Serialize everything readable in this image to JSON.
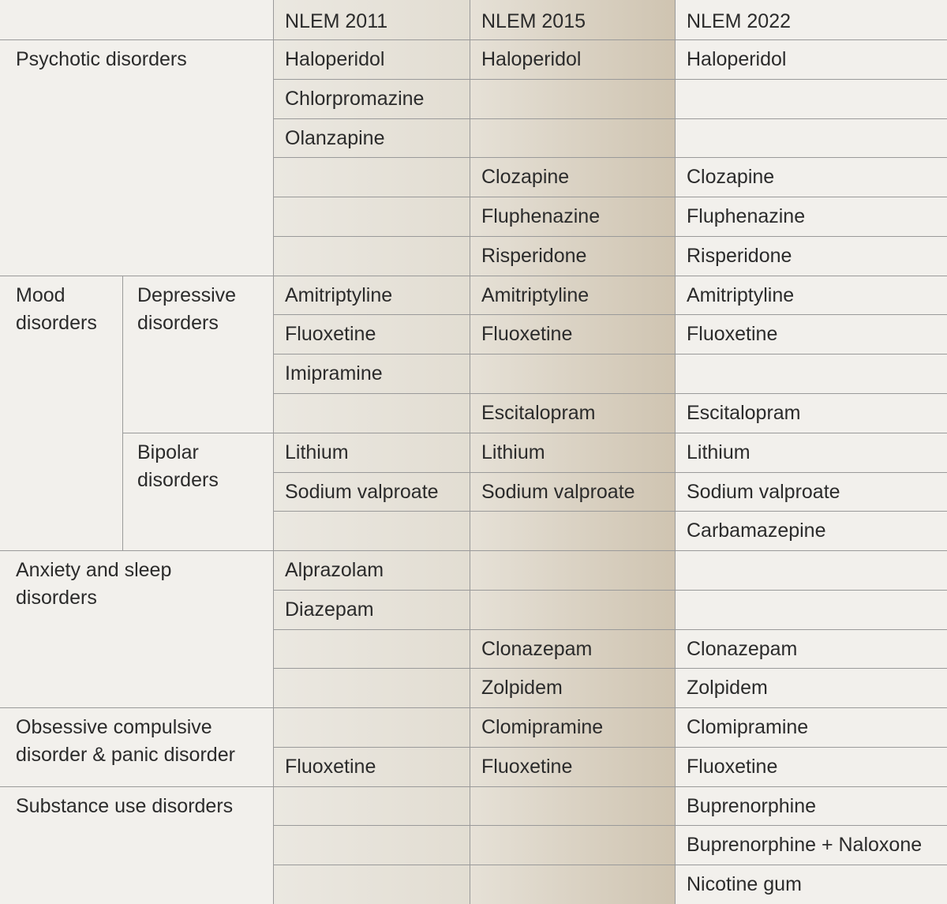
{
  "header": {
    "columns": [
      "NLEM 2011",
      "NLEM 2015",
      "NLEM 2022"
    ]
  },
  "groups": [
    {
      "label": "Psychotic disorders",
      "rows": [
        [
          "Haloperidol",
          "Haloperidol",
          "Haloperidol"
        ],
        [
          "Chlorpromazine",
          null,
          null
        ],
        [
          "Olanzapine",
          null,
          null
        ],
        [
          null,
          "Clozapine",
          "Clozapine"
        ],
        [
          null,
          "Fluphenazine",
          "Fluphenazine"
        ],
        [
          null,
          "Risperidone",
          "Risperidone"
        ]
      ]
    },
    {
      "label": "Mood disorders",
      "subgroups": [
        {
          "label": "Depressive disorders",
          "rows": [
            [
              "Amitriptyline",
              "Amitriptyline",
              "Amitriptyline"
            ],
            [
              "Fluoxetine",
              "Fluoxetine",
              "Fluoxetine"
            ],
            [
              "Imipramine",
              null,
              null
            ],
            [
              null,
              "Escitalopram",
              "Escitalopram"
            ]
          ]
        },
        {
          "label": "Bipolar disorders",
          "rows": [
            [
              "Lithium",
              "Lithium",
              "Lithium"
            ],
            [
              "Sodium valproate",
              "Sodium valproate",
              "Sodium valproate"
            ],
            [
              null,
              null,
              "Carbamazepine"
            ]
          ]
        }
      ]
    },
    {
      "label": "Anxiety and sleep disorders",
      "rows": [
        [
          "Alprazolam",
          null,
          null
        ],
        [
          "Diazepam",
          null,
          null
        ],
        [
          null,
          "Clonazepam",
          "Clonazepam"
        ],
        [
          null,
          "Zolpidem",
          "Zolpidem"
        ]
      ]
    },
    {
      "label": "Obsessive compulsive disorder & panic disorder",
      "rows": [
        [
          null,
          "Clomipramine",
          "Clomipramine"
        ],
        [
          "Fluoxetine",
          "Fluoxetine",
          "Fluoxetine"
        ]
      ]
    },
    {
      "label": "Substance use disorders",
      "rows": [
        [
          null,
          null,
          "Buprenorphine"
        ],
        [
          null,
          null,
          "Buprenorphine + Naloxone"
        ],
        [
          null,
          null,
          "Nicotine gum"
        ]
      ]
    }
  ]
}
